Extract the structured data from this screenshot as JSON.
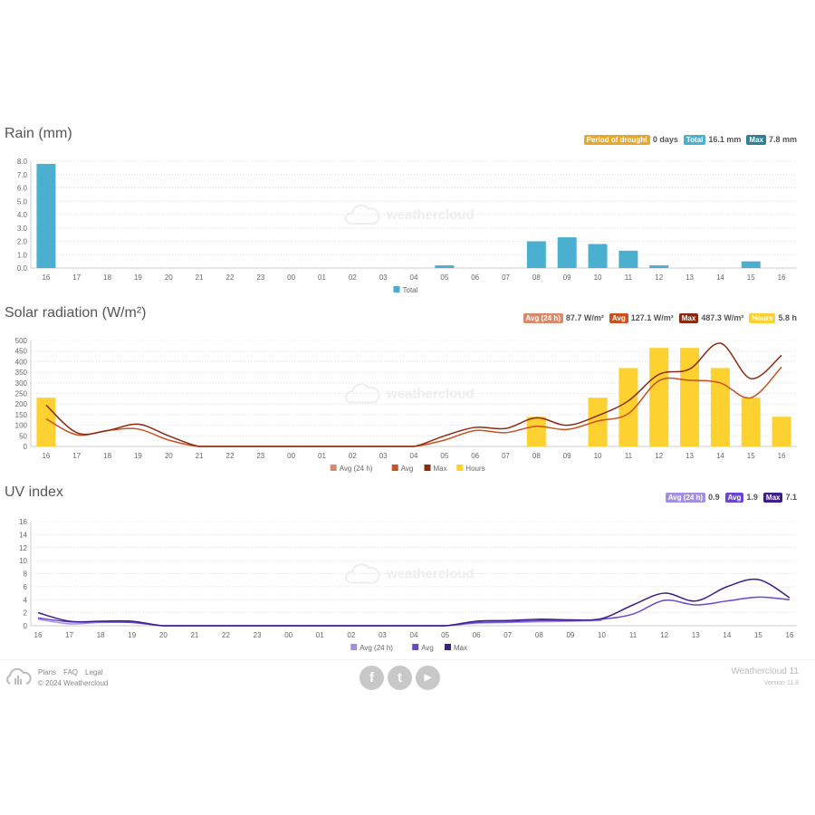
{
  "categories": [
    "16",
    "17",
    "18",
    "19",
    "20",
    "21",
    "22",
    "23",
    "00",
    "01",
    "02",
    "03",
    "04",
    "05",
    "06",
    "07",
    "08",
    "09",
    "10",
    "11",
    "12",
    "13",
    "14",
    "15",
    "16"
  ],
  "watermark": "weathercloud",
  "rain": {
    "title": "Rain (mm)",
    "badges": [
      {
        "label": "Period of drought",
        "value": "0 days",
        "color": "#e6a82a"
      },
      {
        "label": "Total",
        "value": "16.1 mm",
        "color": "#4bafcf"
      },
      {
        "label": "Max",
        "value": "7.8 mm",
        "color": "#2f7f95"
      }
    ],
    "chart_data": {
      "type": "bar",
      "ylim": [
        0,
        8
      ],
      "yticks": [
        "0.0",
        "1.0",
        "2.0",
        "3.0",
        "4.0",
        "5.0",
        "6.0",
        "7.0",
        "8.0"
      ],
      "legend": [
        {
          "name": "Total",
          "color": "#4bafcf"
        }
      ],
      "series": [
        {
          "name": "Total",
          "type": "bar",
          "color": "#4bafcf",
          "values": [
            7.8,
            0,
            0,
            0,
            0,
            0,
            0,
            0,
            0,
            0,
            0,
            0,
            0,
            0.2,
            0,
            0,
            2.0,
            2.3,
            1.8,
            1.3,
            0.2,
            0,
            0,
            0.5,
            0
          ]
        }
      ]
    }
  },
  "solar": {
    "title": "Solar radiation (W/m²)",
    "badges": [
      {
        "label": "Avg (24 h)",
        "value": "87.7 W/m²",
        "color": "#d98a6b"
      },
      {
        "label": "Avg",
        "value": "127.1 W/m²",
        "color": "#c9501f"
      },
      {
        "label": "Max",
        "value": "487.3 W/m²",
        "color": "#8b2a10"
      },
      {
        "label": "Hours",
        "value": "5.8 h",
        "color": "#fdd12f"
      }
    ],
    "chart_data": {
      "type": "bar+line",
      "ylim": [
        0,
        500
      ],
      "yticks": [
        "0",
        "50",
        "100",
        "150",
        "200",
        "250",
        "300",
        "350",
        "400",
        "450",
        "500"
      ],
      "legend": [
        {
          "name": "Avg (24 h)",
          "color": "#d98a6b"
        },
        {
          "name": "Avg",
          "color": "#c9501f"
        },
        {
          "name": "Max",
          "color": "#8b2a10"
        },
        {
          "name": "Hours",
          "color": "#fdd12f"
        }
      ],
      "series": [
        {
          "name": "Hours",
          "type": "bar",
          "color": "#fdd12f",
          "values": [
            230,
            0,
            0,
            0,
            0,
            0,
            0,
            0,
            0,
            0,
            0,
            0,
            0,
            0,
            0,
            0,
            140,
            0,
            230,
            370,
            465,
            465,
            370,
            230,
            140
          ]
        },
        {
          "name": "Avg",
          "type": "line",
          "color": "#c9501f",
          "values": [
            130,
            55,
            75,
            82,
            30,
            0,
            0,
            0,
            0,
            0,
            0,
            0,
            0,
            30,
            75,
            65,
            95,
            80,
            120,
            155,
            310,
            312,
            300,
            230,
            375
          ]
        },
        {
          "name": "Max",
          "type": "line",
          "color": "#8b2a10",
          "values": [
            195,
            65,
            75,
            105,
            50,
            0,
            0,
            0,
            0,
            0,
            0,
            0,
            0,
            50,
            90,
            85,
            135,
            100,
            145,
            215,
            340,
            365,
            487,
            320,
            430
          ]
        }
      ]
    }
  },
  "uv": {
    "title": "UV index",
    "badges": [
      {
        "label": "Avg (24 h)",
        "value": "0.9",
        "color": "#a38ee0"
      },
      {
        "label": "Avg",
        "value": "1.9",
        "color": "#6a45d0"
      },
      {
        "label": "Max",
        "value": "7.1",
        "color": "#3c1f8a"
      }
    ],
    "chart_data": {
      "type": "line",
      "ylim": [
        0,
        16
      ],
      "yticks": [
        "0",
        "2",
        "4",
        "6",
        "8",
        "10",
        "12",
        "14",
        "16"
      ],
      "legend": [
        {
          "name": "Avg (24 h)",
          "color": "#a38ee0"
        },
        {
          "name": "Avg",
          "color": "#6a45d0"
        },
        {
          "name": "Max",
          "color": "#3c1f8a"
        }
      ],
      "series": [
        {
          "name": "Avg (24 h)",
          "type": "line",
          "color": "#a38ee0",
          "values": [
            1.0,
            0.3,
            0.5,
            0.5,
            0,
            0,
            0,
            0,
            0,
            0,
            0,
            0,
            0,
            0,
            0.4,
            0.5,
            0.6,
            0.7,
            0.8,
            null,
            null,
            null,
            null,
            null,
            null
          ]
        },
        {
          "name": "Avg",
          "type": "line",
          "color": "#6a45d0",
          "values": [
            1.2,
            0.6,
            0.6,
            0.5,
            0,
            0,
            0,
            0,
            0,
            0,
            0,
            0,
            0,
            0,
            0.5,
            0.6,
            0.8,
            0.8,
            1.0,
            1.8,
            3.9,
            3.2,
            3.8,
            4.4,
            4.0
          ]
        },
        {
          "name": "Max",
          "type": "line",
          "color": "#3c1f8a",
          "values": [
            2.0,
            0.7,
            0.7,
            0.7,
            0,
            0,
            0,
            0,
            0,
            0,
            0,
            0,
            0,
            0,
            0.7,
            0.8,
            1.0,
            0.9,
            1.1,
            3.2,
            5.0,
            3.8,
            6.0,
            7.1,
            4.3
          ]
        }
      ]
    }
  },
  "footer": {
    "links": [
      "Plans",
      "FAQ",
      "Legal"
    ],
    "copyright": "© 2024 Weathercloud",
    "brand": "Weathercloud 11",
    "version": "Version 11.8",
    "social": [
      {
        "name": "facebook",
        "glyph": "f"
      },
      {
        "name": "twitter",
        "glyph": "t"
      },
      {
        "name": "youtube",
        "glyph": "▶"
      }
    ]
  }
}
